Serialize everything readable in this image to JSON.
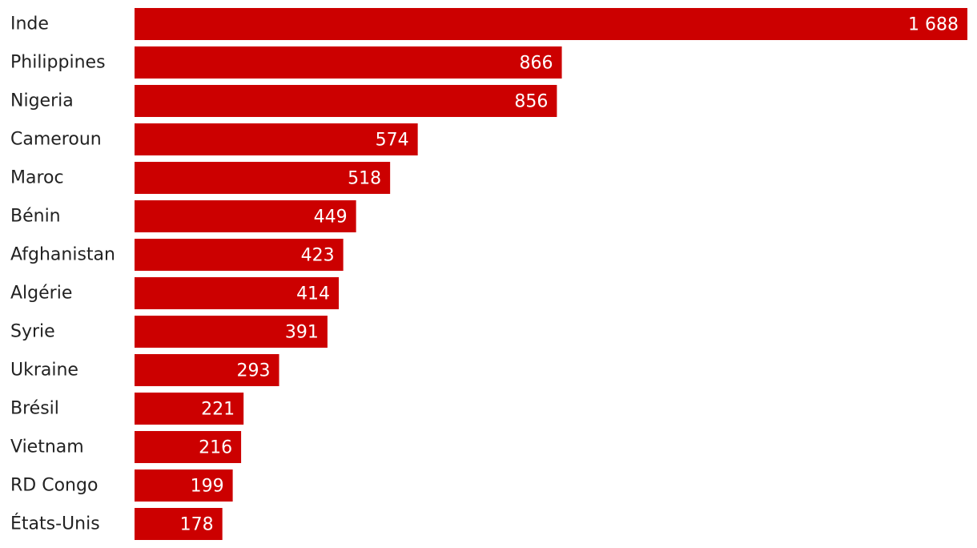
{
  "chart_data": {
    "type": "bar",
    "orientation": "horizontal",
    "categories": [
      "Inde",
      "Philippines",
      "Nigeria",
      "Cameroun",
      "Maroc",
      "Bénin",
      "Afghanistan",
      "Algérie",
      "Syrie",
      "Ukraine",
      "Brésil",
      "Vietnam",
      "RD Congo",
      "États-Unis"
    ],
    "values": [
      1688,
      866,
      856,
      574,
      518,
      449,
      423,
      414,
      391,
      293,
      221,
      216,
      199,
      178
    ],
    "value_labels": [
      "1 688",
      "866",
      "856",
      "574",
      "518",
      "449",
      "423",
      "414",
      "391",
      "293",
      "221",
      "216",
      "199",
      "178"
    ],
    "color": "#cc0000"
  }
}
